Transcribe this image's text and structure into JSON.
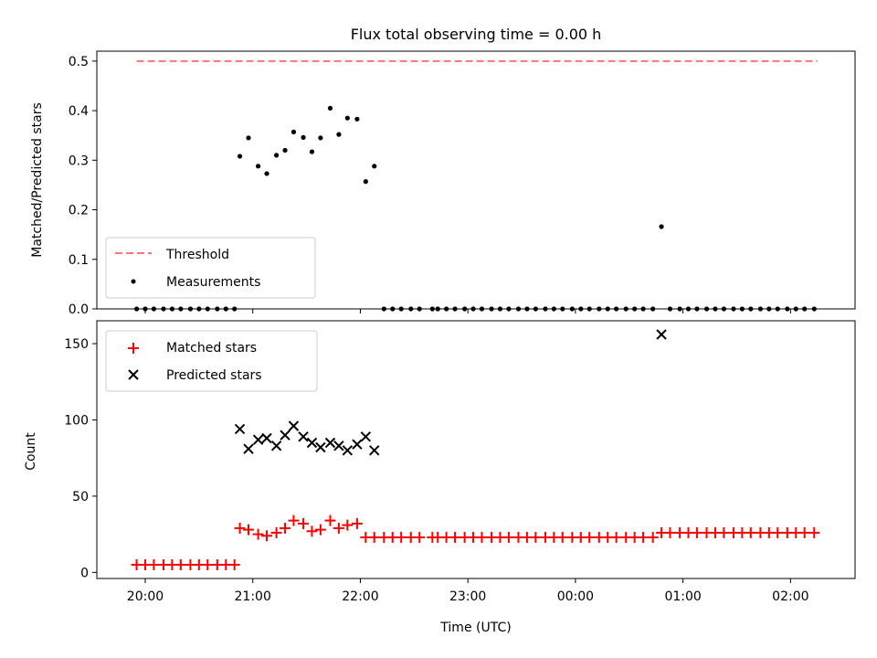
{
  "chart_data": [
    {
      "type": "scatter",
      "title": "Flux total observing time = 0.00 h",
      "xlabel": "",
      "ylabel": "Matched/Predicted stars",
      "xlim": [
        19.55,
        26.6
      ],
      "ylim": [
        0,
        0.52
      ],
      "yticks": [
        0.0,
        0.1,
        0.2,
        0.3,
        0.4,
        0.5
      ],
      "ytick_labels": [
        "0.0",
        "0.1",
        "0.2",
        "0.3",
        "0.4",
        "0.5"
      ],
      "legend": {
        "placement": "lower-left",
        "entries": [
          "Threshold",
          "Measurements"
        ]
      },
      "threshold": {
        "name": "Threshold",
        "y": 0.5,
        "x_range": [
          19.92,
          26.25
        ],
        "color": "#f87878"
      },
      "measurements": {
        "name": "Measurements",
        "color": "#000000",
        "x": [
          19.92,
          20.0,
          20.08,
          20.17,
          20.25,
          20.33,
          20.42,
          20.5,
          20.58,
          20.67,
          20.75,
          20.83,
          20.88,
          20.96,
          21.05,
          21.13,
          21.22,
          21.3,
          21.38,
          21.47,
          21.55,
          21.63,
          21.72,
          21.8,
          21.88,
          21.97,
          22.05,
          22.13,
          22.22,
          22.3,
          22.38,
          22.47,
          22.55,
          22.67,
          22.72,
          22.8,
          22.88,
          22.97,
          23.05,
          23.13,
          23.22,
          23.3,
          23.38,
          23.47,
          23.55,
          23.63,
          23.72,
          23.8,
          23.88,
          23.97,
          24.05,
          24.13,
          24.22,
          24.3,
          24.38,
          24.47,
          24.55,
          24.63,
          24.72,
          24.8,
          24.88,
          24.97,
          25.05,
          25.13,
          25.22,
          25.3,
          25.38,
          25.47,
          25.55,
          25.63,
          25.72,
          25.8,
          25.88,
          25.97,
          26.05,
          26.13,
          26.22
        ],
        "y": [
          0,
          0,
          0,
          0,
          0,
          0,
          0,
          0,
          0,
          0,
          0,
          0,
          0.308,
          0.345,
          0.288,
          0.273,
          0.31,
          0.32,
          0.357,
          0.346,
          0.317,
          0.345,
          0.405,
          0.352,
          0.385,
          0.383,
          0.257,
          0.288,
          0,
          0,
          0,
          0,
          0,
          0,
          0,
          0,
          0,
          0,
          0,
          0,
          0,
          0,
          0,
          0,
          0,
          0,
          0,
          0,
          0,
          0,
          0,
          0,
          0,
          0,
          0,
          0,
          0,
          0,
          0,
          0.166,
          0,
          0,
          0,
          0,
          0,
          0,
          0,
          0,
          0,
          0,
          0,
          0,
          0,
          0,
          0,
          0,
          0
        ]
      }
    },
    {
      "type": "scatter",
      "title": "",
      "xlabel": "Time (UTC)",
      "ylabel": "Count",
      "xlim": [
        19.55,
        26.6
      ],
      "ylim": [
        -4,
        165
      ],
      "yticks": [
        0,
        50,
        100,
        150
      ],
      "ytick_labels": [
        "0",
        "50",
        "100",
        "150"
      ],
      "xticks": [
        20,
        21,
        22,
        23,
        24,
        25,
        26
      ],
      "xtick_labels": [
        "20:00",
        "21:00",
        "22:00",
        "23:00",
        "00:00",
        "01:00",
        "02:00"
      ],
      "legend": {
        "placement": "upper-left",
        "entries": [
          "Matched stars",
          "Predicted stars"
        ]
      },
      "series": [
        {
          "name": "Matched stars",
          "marker": "plus",
          "color": "#ff0000",
          "x": [
            19.92,
            20.0,
            20.08,
            20.17,
            20.25,
            20.33,
            20.42,
            20.5,
            20.58,
            20.67,
            20.75,
            20.83,
            20.88,
            20.96,
            21.05,
            21.13,
            21.22,
            21.3,
            21.38,
            21.47,
            21.55,
            21.63,
            21.72,
            21.8,
            21.88,
            21.97,
            22.05,
            22.13,
            22.22,
            22.3,
            22.38,
            22.47,
            22.55,
            22.67,
            22.72,
            22.8,
            22.88,
            22.97,
            23.05,
            23.13,
            23.22,
            23.3,
            23.38,
            23.47,
            23.55,
            23.63,
            23.72,
            23.8,
            23.88,
            23.97,
            24.05,
            24.13,
            24.22,
            24.3,
            24.38,
            24.47,
            24.55,
            24.63,
            24.72,
            24.8,
            24.88,
            24.97,
            25.05,
            25.13,
            25.22,
            25.3,
            25.38,
            25.47,
            25.55,
            25.63,
            25.72,
            25.8,
            25.88,
            25.97,
            26.05,
            26.13,
            26.22
          ],
          "y": [
            5,
            5,
            5,
            5,
            5,
            5,
            5,
            5,
            5,
            5,
            5,
            5,
            29,
            28,
            25,
            24,
            26,
            29,
            34,
            32,
            27,
            28,
            34,
            29,
            31,
            32,
            23,
            23,
            23,
            23,
            23,
            23,
            23,
            23,
            23,
            23,
            23,
            23,
            23,
            23,
            23,
            23,
            23,
            23,
            23,
            23,
            23,
            23,
            23,
            23,
            23,
            23,
            23,
            23,
            23,
            23,
            23,
            23,
            23,
            26,
            26,
            26,
            26,
            26,
            26,
            26,
            26,
            26,
            26,
            26,
            26,
            26,
            26,
            26,
            26,
            26,
            26
          ]
        },
        {
          "name": "Predicted stars",
          "marker": "x",
          "color": "#000000",
          "x": [
            20.88,
            20.96,
            21.05,
            21.13,
            21.22,
            21.3,
            21.38,
            21.47,
            21.55,
            21.63,
            21.72,
            21.8,
            21.88,
            21.97,
            22.05,
            22.13,
            24.8
          ],
          "y": [
            94,
            81,
            87,
            88,
            83,
            90,
            96,
            89,
            85,
            82,
            85,
            83,
            80,
            84,
            89,
            80,
            156
          ]
        }
      ]
    }
  ]
}
